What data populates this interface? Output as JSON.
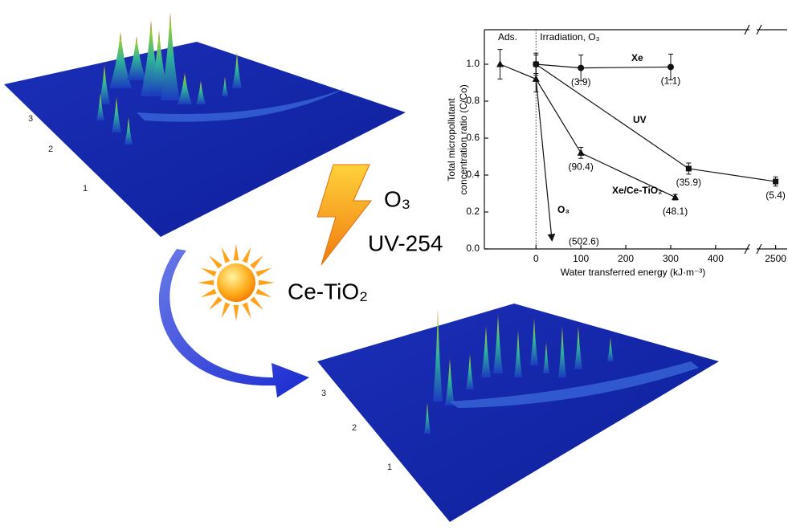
{
  "chart_data": {
    "type": "line",
    "ylabel": [
      "Total micropollutant",
      "concentration ratio (C/Co)"
    ],
    "xlabel": "Water transferred energy (kJ·m⁻³)",
    "regions": [
      "Ads.",
      "Irradiation, O₃"
    ],
    "xlim": [
      -115,
      2535
    ],
    "xbreak": [
      470,
      2450
    ],
    "xticks": [
      0,
      100,
      200,
      300,
      400,
      2500
    ],
    "ylim": [
      0,
      1.2
    ],
    "yticks": [
      {
        "value": 0,
        "label": "0.0"
      },
      {
        "value": 0.2,
        "label": "0.2"
      },
      {
        "value": 0.4,
        "label": "0.4"
      },
      {
        "value": 0.6,
        "label": "0.6"
      },
      {
        "value": 0.8,
        "label": "0.8"
      },
      {
        "value": 1.0,
        "label": "1.0"
      }
    ],
    "series": [
      {
        "name": "Xe",
        "color": "#111111",
        "marker": "circle",
        "x": [
          0,
          100,
          300
        ],
        "values": [
          1.0,
          0.98,
          0.985
        ],
        "errors": [
          0.06,
          0.07,
          0.07
        ],
        "point_labels": [
          null,
          "(3.9)",
          "(1.1)"
        ]
      },
      {
        "name": "UV",
        "color": "#111111",
        "marker": "square",
        "x": [
          0,
          340,
          2500
        ],
        "values": [
          1.0,
          0.435,
          0.365
        ],
        "errors": [
          0.05,
          0.03,
          0.025
        ],
        "point_labels": [
          null,
          "(35.9)",
          "(5.4)"
        ]
      },
      {
        "name": "Xe/Ce-TiO₂",
        "color": "#111111",
        "marker": "triangle",
        "x": [
          -80,
          0,
          100,
          310
        ],
        "values": [
          1.0,
          0.92,
          0.52,
          0.28
        ],
        "errors": [
          0.08,
          0.07,
          0.03,
          0.015
        ],
        "point_labels": [
          null,
          null,
          "(90.4)",
          "(48.1)"
        ]
      },
      {
        "name": "O₃",
        "color": "#111111",
        "marker": "arrow",
        "x": [
          0,
          35
        ],
        "values": [
          0.92,
          0.06
        ],
        "point_labels": [
          null,
          "(502.6)"
        ]
      }
    ]
  },
  "treatments": [
    "O₃",
    "UV-254",
    "Ce-TiO₂"
  ],
  "surfaces": [
    {
      "axis_labels": [
        "3",
        "2",
        "1"
      ]
    },
    {
      "axis_labels": [
        "3",
        "2",
        "1"
      ]
    }
  ]
}
